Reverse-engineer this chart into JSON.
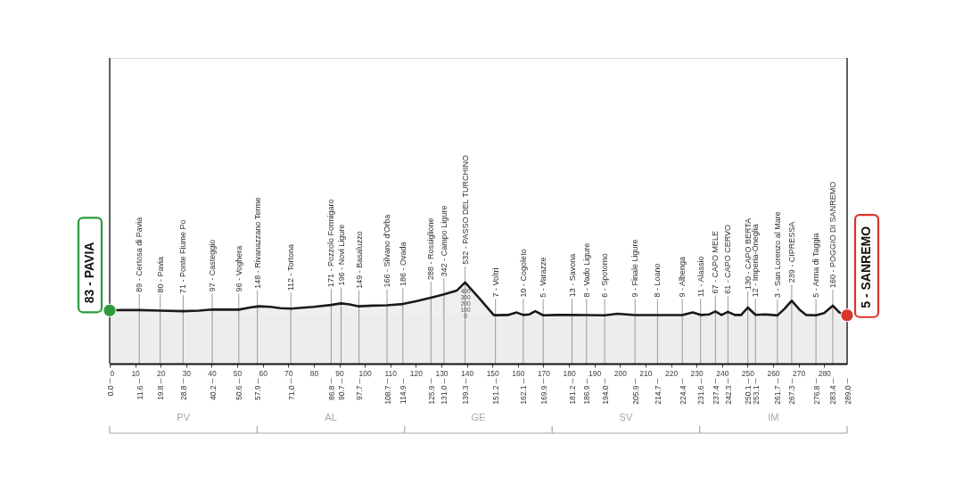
{
  "chart_data": {
    "type": "area",
    "xlim": [
      0,
      289
    ],
    "xticks": [
      0,
      10,
      20,
      30,
      40,
      50,
      60,
      70,
      80,
      90,
      100,
      110,
      120,
      130,
      140,
      150,
      160,
      170,
      180,
      190,
      200,
      210,
      220,
      230,
      240,
      250,
      260,
      270,
      280
    ],
    "x2lim": [
      0,
      289
    ],
    "x2ticks": [
      {
        "value": 0,
        "label": "0.0"
      },
      11.6,
      19.8,
      28.8,
      40.2,
      50.6,
      57.9,
      {
        "value": 71,
        "label": "71.0"
      },
      86.8,
      90.7,
      97.7,
      108.7,
      114.9,
      125.9,
      {
        "value": 131,
        "label": "131.0"
      },
      139.3,
      151.2,
      162.1,
      169.9,
      181.2,
      186.9,
      {
        "value": 194,
        "label": "194.0"
      },
      205.9,
      214.7,
      224.4,
      231.6,
      237.4,
      242.3,
      250.1,
      253.1,
      261.7,
      267.3,
      276.8,
      283.4,
      {
        "value": 289,
        "label": "289.0"
      }
    ],
    "ylim": [
      -770,
      4130
    ],
    "yticks": [
      0,
      100,
      200,
      300,
      400
    ],
    "series": [
      {
        "color": "#1a1a1a",
        "x": [
          0,
          5,
          11.6,
          19.8,
          28.8,
          35,
          40.2,
          50.6,
          55,
          58.5,
          63,
          67,
          71,
          80,
          86.8,
          90.7,
          94,
          97.7,
          103,
          108.7,
          114.9,
          120,
          125.9,
          131,
          136,
          139.3,
          145,
          150.5,
          151.2,
          156,
          159.5,
          162.1,
          164.5,
          166.8,
          169.9,
          175,
          181.2,
          186.9,
          194,
          199,
          205.9,
          214.7,
          224.4,
          228.5,
          231.6,
          235,
          237.4,
          239.8,
          242.3,
          245,
          247.5,
          250.1,
          253.1,
          257,
          261.7,
          264.5,
          267.3,
          270.5,
          273,
          276.8,
          280,
          283.4,
          286,
          289
        ],
        "values": [
          83,
          90,
          89,
          80,
          71,
          80,
          97,
          96,
          130,
          150,
          140,
          120,
          112,
          140,
          171,
          196,
          180,
          149,
          160,
          166,
          186,
          230,
          288,
          342,
          400,
          532,
          270,
          10,
          7,
          10,
          50,
          10,
          20,
          70,
          5,
          10,
          13,
          8,
          6,
          30,
          9,
          8,
          9,
          50,
          11,
          20,
          67,
          10,
          61,
          10,
          10,
          130,
          12,
          20,
          3,
          110,
          239,
          90,
          10,
          5,
          40,
          160,
          50,
          5
        ]
      },
      {
        "type": "scatter",
        "marker": "circle",
        "color": "#2e9b3e",
        "x": [
          0
        ],
        "values": [
          83
        ],
        "value_labels": [
          "83 - PAVIA"
        ]
      },
      {
        "type": "scatter",
        "marker": "circle",
        "color": "#d9352b",
        "x": [
          289
        ],
        "values": [
          5
        ],
        "value_labels": [
          "5 - SANREMO"
        ]
      }
    ],
    "annotations": [
      {
        "text": "89 - Certosa di Pavia",
        "x": 11.6,
        "y": 89
      },
      {
        "text": "80 - Pavia",
        "x": 19.8,
        "y": 80
      },
      {
        "text": "71 - Ponte Fiume Po",
        "x": 28.8,
        "y": 71
      },
      {
        "text": "97 - Casteggio",
        "x": 40.2,
        "y": 97
      },
      {
        "text": "96 - Voghera",
        "x": 50.6,
        "y": 96
      },
      {
        "text": "148 - Rivanazzano Terme",
        "x": 57.9,
        "y": 148
      },
      {
        "text": "112 - Tortona",
        "x": 71.0,
        "y": 112
      },
      {
        "text": "171 - Pozzolo Formigaro",
        "x": 86.8,
        "y": 171
      },
      {
        "text": "196 - Novi Ligure",
        "x": 90.7,
        "y": 196
      },
      {
        "text": "149 - Basaluzzo",
        "x": 97.7,
        "y": 149
      },
      {
        "text": "166 - Silvano d'Orba",
        "x": 108.7,
        "y": 166
      },
      {
        "text": "186 - Ovada",
        "x": 114.9,
        "y": 186
      },
      {
        "text": "288 - Rossiglione",
        "x": 125.9,
        "y": 288
      },
      {
        "text": "342 - Campo Ligure",
        "x": 131.0,
        "y": 342
      },
      {
        "text": "532 - PASSO DEL TURCHINO",
        "x": 139.3,
        "y": 532
      },
      {
        "text": "7 - Voltri",
        "x": 151.2,
        "y": 7
      },
      {
        "text": "10 - Cogoleto",
        "x": 162.1,
        "y": 10
      },
      {
        "text": "5 - Varazze",
        "x": 169.9,
        "y": 5
      },
      {
        "text": "13 - Savona",
        "x": 181.2,
        "y": 13
      },
      {
        "text": "8 - Vado Ligure",
        "x": 186.9,
        "y": 8
      },
      {
        "text": "6 - Spotorno",
        "x": 194.0,
        "y": 6
      },
      {
        "text": "9 - Finale Ligure",
        "x": 205.9,
        "y": 9
      },
      {
        "text": "8 - Loano",
        "x": 214.7,
        "y": 8
      },
      {
        "text": "9 - Albenga",
        "x": 224.4,
        "y": 9
      },
      {
        "text": "11 - Alassio",
        "x": 231.6,
        "y": 11
      },
      {
        "text": "67 - CAPO MELE",
        "x": 237.4,
        "y": 67
      },
      {
        "text": "61 - CAPO CERVO",
        "x": 242.3,
        "y": 61
      },
      {
        "text": "130 - CAPO BERTA",
        "x": 250.1,
        "y": 130
      },
      {
        "text": "12 - Imperia-Oneglia",
        "x": 253.1,
        "y": 12
      },
      {
        "text": "3 - San Lorenzo al Mare",
        "x": 261.7,
        "y": 3
      },
      {
        "text": "239 - CIPRESSA",
        "x": 267.3,
        "y": 239
      },
      {
        "text": "5 - Arma di Taggia",
        "x": 276.8,
        "y": 5
      },
      {
        "text": "160 - POGGIO DI SANREMO",
        "x": 283.4,
        "y": 160
      },
      "PV",
      "AL",
      "GE",
      "SV",
      "IM"
    ],
    "bands": [
      {
        "axis": "y",
        "from": -770,
        "to": 0,
        "color": "#ededed"
      }
    ]
  }
}
